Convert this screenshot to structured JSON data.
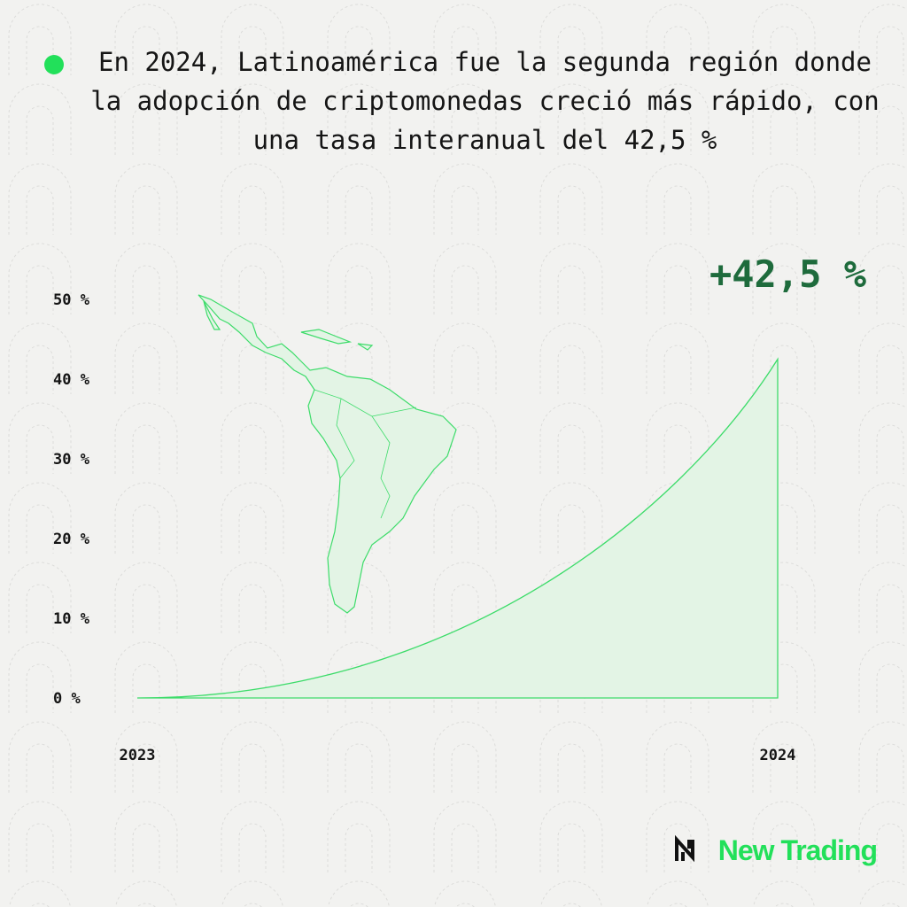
{
  "chart_data": {
    "type": "area",
    "title": "En 2024, Latinoamérica fue la segunda región donde la adopción de criptomonedas creció más rápido, con una tasa interanual del 42,5 %",
    "annotation": "+42,5 %",
    "categories": [
      "2023",
      "2024"
    ],
    "series": [
      {
        "color": "#3ddc6a",
        "values": [
          0,
          42.5
        ]
      }
    ],
    "ylim": [
      0,
      50
    ],
    "yticks": [
      {
        "value": 0,
        "label": "0 %"
      },
      {
        "value": 10,
        "label": "10 %"
      },
      {
        "value": 20,
        "label": "20 %"
      },
      {
        "value": 30,
        "label": "30 %"
      },
      {
        "value": 40,
        "label": "40 %"
      },
      {
        "value": 50,
        "label": "50 %"
      }
    ],
    "grid": false
  },
  "brand": "New Trading"
}
